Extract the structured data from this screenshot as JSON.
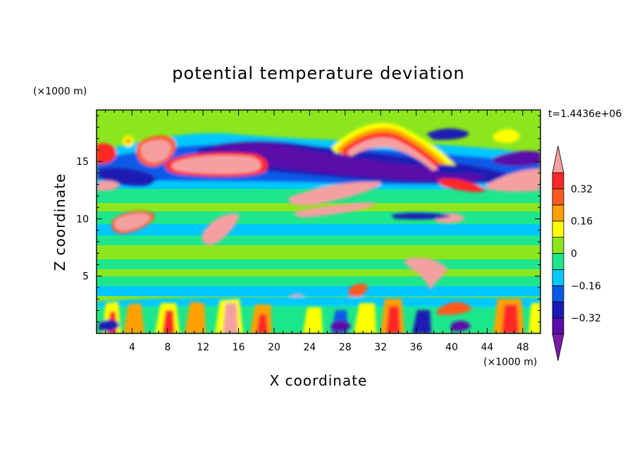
{
  "chart_data": {
    "type": "heatmap",
    "title": "potential temperature deviation",
    "xlabel": "X coordinate",
    "ylabel": "Z coordinate",
    "x_unit": "(×1000 m)",
    "y_unit": "(×1000 m)",
    "time_label": "t=1.4436e+06",
    "xlim": [
      0,
      50
    ],
    "ylim": [
      0,
      19.5
    ],
    "x_ticks": [
      4,
      8,
      12,
      16,
      20,
      24,
      28,
      32,
      36,
      40,
      44,
      48
    ],
    "y_ticks": [
      5,
      10,
      15
    ],
    "colorbar": {
      "levels": [
        -0.4,
        -0.32,
        -0.24,
        -0.16,
        -0.08,
        0,
        0.08,
        0.16,
        0.24,
        0.32,
        0.4
      ],
      "tick_labels": [
        "0.32",
        "0.16",
        "0",
        "−0.16",
        "−0.32"
      ],
      "tick_values": [
        0.32,
        0.16,
        0,
        -0.16,
        -0.32
      ],
      "colors": [
        "#7a1aa6",
        "#5a0ca8",
        "#1a1ab4",
        "#0a5ae8",
        "#00c8ff",
        "#1ee68c",
        "#8ce61e",
        "#ffff00",
        "#ffa000",
        "#ff5a1e",
        "#ff2828",
        "#f5a0a0"
      ],
      "extend": "both"
    },
    "grid": false
  }
}
